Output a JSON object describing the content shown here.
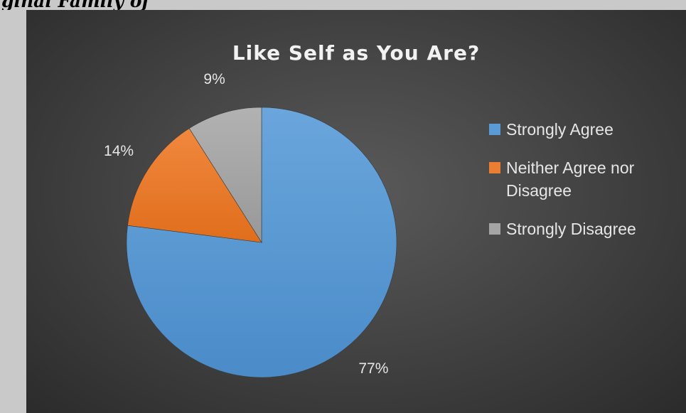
{
  "page": {
    "clipped_heading": "ginal Family of"
  },
  "chart_data": {
    "type": "pie",
    "title": "Like Self as You Are?",
    "categories": [
      "Strongly Agree",
      "Neither Agree nor Disagree",
      "Strongly Disagree"
    ],
    "values": [
      77,
      14,
      9
    ],
    "labels": [
      "77%",
      "14%",
      "9%"
    ],
    "colors": [
      "#5b9bd5",
      "#ed7d31",
      "#a5a5a5"
    ],
    "legend_position": "right",
    "start_angle": "12 o'clock, clockwise"
  }
}
